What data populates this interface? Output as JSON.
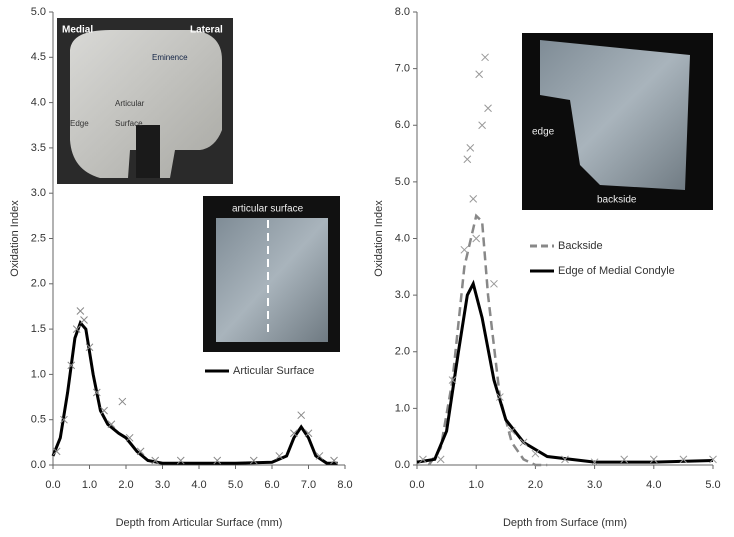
{
  "chart_data": [
    {
      "type": "line",
      "xlabel": "Depth from Articular Surface (mm)",
      "ylabel": "Oxidation Index",
      "xlim": [
        0,
        8
      ],
      "ylim": [
        0,
        5
      ],
      "xticks": [
        {
          "value": 0,
          "label": "0.0"
        },
        {
          "value": 1,
          "label": "1.0"
        },
        {
          "value": 2,
          "label": "2.0"
        },
        {
          "value": 3,
          "label": "3.0"
        },
        {
          "value": 4,
          "label": "4.0"
        },
        {
          "value": 5,
          "label": "5.0"
        },
        {
          "value": 6,
          "label": "6.0"
        },
        {
          "value": 7,
          "label": "7.0"
        },
        {
          "value": 8,
          "label": "8.0"
        }
      ],
      "yticks": [
        {
          "value": 0,
          "label": "0.0"
        },
        0.5,
        {
          "value": 1,
          "label": "1.0"
        },
        1.5,
        {
          "value": 2,
          "label": "2.0"
        },
        2.5,
        {
          "value": 3,
          "label": "3.0"
        },
        3.5,
        {
          "value": 4,
          "label": "4.0"
        },
        4.5,
        {
          "value": 5,
          "label": "5.0"
        }
      ],
      "series": [
        {
          "name": "Articular Surface",
          "color": "#000000",
          "style": "solid",
          "x": [
            0,
            0.2,
            0.4,
            0.6,
            0.75,
            0.9,
            1.1,
            1.3,
            1.5,
            1.8,
            2.0,
            2.3,
            2.6,
            3.0,
            4.0,
            5.0,
            6.0,
            6.4,
            6.6,
            6.8,
            7.0,
            7.2,
            7.5,
            7.8
          ],
          "values": [
            0.1,
            0.3,
            0.8,
            1.4,
            1.57,
            1.5,
            1.0,
            0.6,
            0.45,
            0.35,
            0.3,
            0.15,
            0.05,
            0.02,
            0.02,
            0.02,
            0.03,
            0.1,
            0.3,
            0.42,
            0.3,
            0.1,
            0.02,
            0.02
          ]
        },
        {
          "color": "#888888",
          "marker": "x",
          "x": [
            0.1,
            0.3,
            0.5,
            0.65,
            0.75,
            0.85,
            1.0,
            1.2,
            1.4,
            1.6,
            1.9,
            2.1,
            2.4,
            2.8,
            3.5,
            4.5,
            5.5,
            6.2,
            6.6,
            6.8,
            7.0,
            7.3,
            7.7
          ],
          "values": [
            0.15,
            0.5,
            1.1,
            1.5,
            1.7,
            1.6,
            1.3,
            0.8,
            0.6,
            0.45,
            0.7,
            0.3,
            0.15,
            0.05,
            0.05,
            0.05,
            0.05,
            0.1,
            0.35,
            0.55,
            0.35,
            0.1,
            0.05
          ]
        }
      ],
      "annotations": [
        "Medial",
        "Lateral",
        "Eminence",
        "Articular",
        "Surface",
        "Edge",
        "articular surface"
      ]
    },
    {
      "type": "line",
      "xlabel": "Depth from Surface (mm)",
      "ylabel": "Oxidation Index",
      "xlim": [
        0,
        5
      ],
      "ylim": [
        0,
        8
      ],
      "xticks": [
        {
          "value": 0,
          "label": "0.0"
        },
        {
          "value": 1,
          "label": "1.0"
        },
        {
          "value": 2,
          "label": "2.0"
        },
        {
          "value": 3,
          "label": "3.0"
        },
        {
          "value": 4,
          "label": "4.0"
        },
        {
          "value": 5,
          "label": "5.0"
        }
      ],
      "yticks": [
        {
          "value": 0,
          "label": "0.0"
        },
        {
          "value": 1,
          "label": "1.0"
        },
        {
          "value": 2,
          "label": "2.0"
        },
        {
          "value": 3,
          "label": "3.0"
        },
        {
          "value": 4,
          "label": "4.0"
        },
        {
          "value": 5,
          "label": "5.0"
        },
        {
          "value": 6,
          "label": "6.0"
        },
        {
          "value": 7,
          "label": "7.0"
        },
        {
          "value": 8,
          "label": "8.0"
        }
      ],
      "series": [
        {
          "name": "Backside",
          "color": "#888888",
          "style": "dashed",
          "x": [
            0.2,
            0.4,
            0.6,
            0.8,
            1.0,
            1.1,
            1.2,
            1.4,
            1.6,
            1.8,
            2.0,
            2.2
          ],
          "values": [
            0,
            0.3,
            1.5,
            3.5,
            4.4,
            4.3,
            3.0,
            1.2,
            0.4,
            0.1,
            0,
            0
          ]
        },
        {
          "name": "Edge of Medial Condyle",
          "color": "#000000",
          "style": "solid",
          "x": [
            0,
            0.3,
            0.5,
            0.7,
            0.85,
            0.95,
            1.1,
            1.3,
            1.5,
            1.8,
            2.2,
            3.0,
            4.0,
            5.0
          ],
          "values": [
            0.05,
            0.1,
            0.6,
            2.0,
            3.0,
            3.2,
            2.6,
            1.5,
            0.8,
            0.4,
            0.15,
            0.05,
            0.05,
            0.08
          ]
        },
        {
          "color": "#999999",
          "marker": "x",
          "x": [
            0.1,
            0.4,
            0.6,
            0.8,
            0.85,
            0.9,
            0.95,
            1.0,
            1.05,
            1.1,
            1.15,
            1.2,
            1.3,
            1.4,
            1.6,
            1.8,
            2.0,
            2.5,
            3.0,
            3.5,
            4.0,
            4.5,
            5.0
          ],
          "values": [
            0.1,
            0.1,
            1.5,
            3.8,
            5.4,
            5.6,
            4.7,
            4.0,
            6.9,
            6.0,
            7.2,
            6.3,
            3.2,
            1.2,
            0.6,
            0.4,
            0.2,
            0.1,
            0.05,
            0.1,
            0.1,
            0.1,
            0.1
          ]
        }
      ],
      "annotations": [
        "edge",
        "backside"
      ]
    }
  ]
}
